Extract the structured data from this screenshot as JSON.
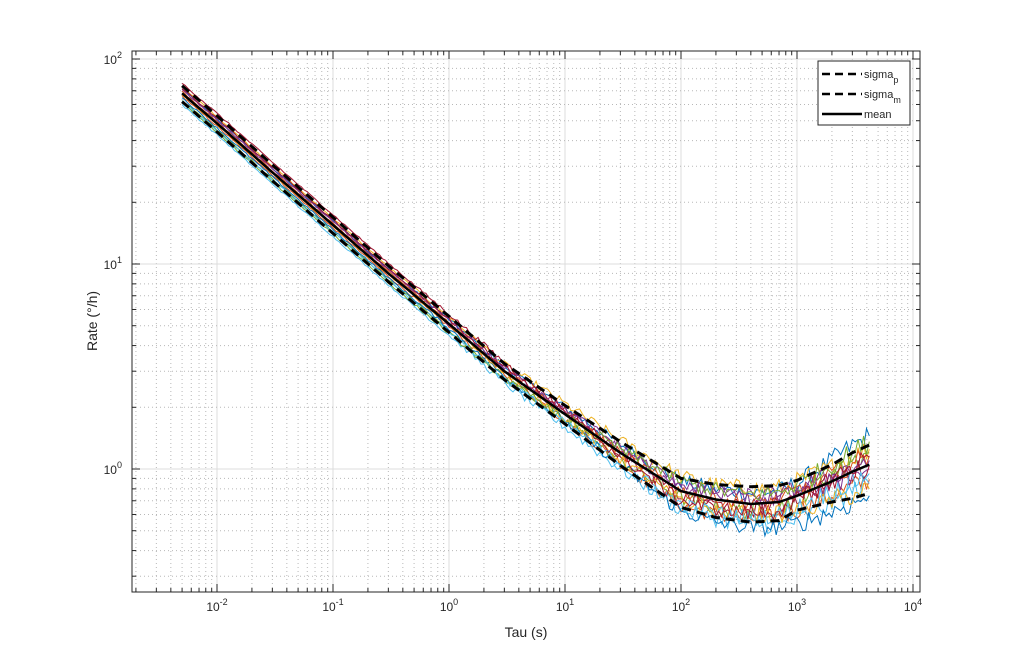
{
  "chart_data": {
    "type": "line",
    "title": "",
    "xlabel": "Tau (s)",
    "ylabel": "Rate (°/h)",
    "xscale": "log",
    "yscale": "log",
    "xlim": [
      0.0018,
      11500
    ],
    "ylim": [
      0.25,
      110
    ],
    "grid": true,
    "minor_grid": true,
    "legend_placement": "top-right",
    "x_ticks": [
      {
        "base": "10",
        "exp": "-2",
        "value": 0.01
      },
      {
        "base": "10",
        "exp": "-1",
        "value": 0.1
      },
      {
        "base": "10",
        "exp": "0",
        "value": 1
      },
      {
        "base": "10",
        "exp": "1",
        "value": 10
      },
      {
        "base": "10",
        "exp": "2",
        "value": 100
      },
      {
        "base": "10",
        "exp": "3",
        "value": 1000
      },
      {
        "base": "10",
        "exp": "4",
        "value": 10000
      }
    ],
    "y_ticks": [
      {
        "base": "10",
        "exp": "0",
        "value": 1
      },
      {
        "base": "10",
        "exp": "1",
        "value": 10
      },
      {
        "base": "10",
        "exp": "2",
        "value": 100
      }
    ],
    "x": [
      0.005,
      0.01,
      0.03,
      0.1,
      0.3,
      1,
      3,
      10,
      30,
      100,
      200,
      400,
      700,
      1000,
      2000,
      3000,
      4200
    ],
    "legend": [
      {
        "label": "sigma",
        "sub": "p",
        "style": "dashed"
      },
      {
        "label": "sigma",
        "sub": "m",
        "style": "dashed"
      },
      {
        "label": "mean",
        "sub": "",
        "style": "solid"
      }
    ],
    "summary_series": {
      "sigma_p": [
        74,
        52.9,
        30.5,
        16.9,
        9.8,
        5.56,
        3.27,
        2.04,
        1.36,
        0.9,
        0.84,
        0.82,
        0.83,
        0.88,
        1.05,
        1.2,
        1.31
      ],
      "sigma_m": [
        62,
        44.1,
        25.5,
        14.1,
        8.2,
        4.64,
        2.73,
        1.66,
        1.04,
        0.65,
        0.58,
        0.55,
        0.56,
        0.63,
        0.69,
        0.72,
        0.76
      ],
      "mean": [
        68,
        48.5,
        28,
        15.5,
        9.0,
        5.1,
        3.0,
        1.85,
        1.2,
        0.78,
        0.71,
        0.675,
        0.69,
        0.74,
        0.87,
        0.97,
        1.05
      ]
    },
    "runs": [
      {
        "color": "#0072BD",
        "values": [
          71.4,
          50.9,
          29.4,
          16.3,
          9.45,
          5.36,
          3.15,
          1.99,
          1.32,
          0.87,
          0.8,
          0.76,
          0.78,
          0.85,
          1.1,
          1.3,
          1.45
        ]
      },
      {
        "color": "#D95319",
        "values": [
          66,
          47,
          27.2,
          15.0,
          8.7,
          4.95,
          2.9,
          1.72,
          1.07,
          0.66,
          0.6,
          0.57,
          0.58,
          0.63,
          0.74,
          0.82,
          0.89
        ]
      },
      {
        "color": "#EDB120",
        "values": [
          73.4,
          52.4,
          30.2,
          16.7,
          9.7,
          5.5,
          3.25,
          2.08,
          1.38,
          0.92,
          0.84,
          0.8,
          0.81,
          0.87,
          1.02,
          1.15,
          1.25
        ]
      },
      {
        "color": "#7E2F8E",
        "values": [
          68,
          48.5,
          28,
          15.5,
          9.0,
          5.1,
          3.0,
          1.9,
          1.24,
          0.82,
          0.75,
          0.71,
          0.72,
          0.76,
          0.84,
          0.92,
          1.0
        ]
      },
      {
        "color": "#77AC30",
        "values": [
          63.2,
          45.1,
          26,
          14.4,
          8.4,
          4.75,
          2.8,
          1.72,
          1.1,
          0.72,
          0.65,
          0.62,
          0.65,
          0.72,
          0.95,
          1.1,
          1.2
        ]
      },
      {
        "color": "#4DBEEE",
        "values": [
          59.8,
          42.7,
          24.6,
          13.6,
          7.9,
          4.5,
          2.62,
          1.6,
          1.0,
          0.63,
          0.57,
          0.54,
          0.53,
          0.56,
          0.68,
          0.78,
          0.85
        ]
      },
      {
        "color": "#A2142F",
        "values": [
          76.2,
          54.3,
          31.4,
          17.4,
          10.1,
          5.7,
          3.3,
          1.95,
          1.2,
          0.74,
          0.67,
          0.64,
          0.66,
          0.72,
          0.86,
          0.96,
          1.04
        ]
      },
      {
        "color": "#0072BD",
        "values": [
          64.6,
          46.1,
          26.6,
          14.7,
          8.55,
          4.85,
          2.83,
          1.7,
          1.05,
          0.62,
          0.55,
          0.52,
          0.52,
          0.54,
          0.62,
          0.68,
          0.74
        ]
      },
      {
        "color": "#D95319",
        "values": [
          69.4,
          49.5,
          28.6,
          15.8,
          9.2,
          5.2,
          3.05,
          1.87,
          1.2,
          0.78,
          0.71,
          0.68,
          0.71,
          0.78,
          0.94,
          1.06,
          1.16
        ]
      },
      {
        "color": "#EDB120",
        "values": [
          67.3,
          48,
          27.7,
          15.3,
          8.9,
          5.05,
          2.96,
          1.78,
          1.12,
          0.69,
          0.63,
          0.6,
          0.6,
          0.63,
          0.7,
          0.75,
          0.8
        ]
      },
      {
        "color": "#7E2F8E",
        "values": [
          70.7,
          50.4,
          29.1,
          16.1,
          9.35,
          5.3,
          3.12,
          1.95,
          1.28,
          0.86,
          0.78,
          0.74,
          0.75,
          0.8,
          0.93,
          1.02,
          1.1
        ]
      },
      {
        "color": "#77AC30",
        "values": [
          61.2,
          43.7,
          25.2,
          14,
          8.1,
          4.6,
          2.75,
          1.8,
          1.25,
          0.87,
          0.79,
          0.75,
          0.77,
          0.84,
          1.05,
          1.2,
          1.36
        ]
      },
      {
        "color": "#4DBEEE",
        "values": [
          62.6,
          44.6,
          25.8,
          14.3,
          8.3,
          4.7,
          2.76,
          1.67,
          1.06,
          0.67,
          0.61,
          0.58,
          0.6,
          0.65,
          0.78,
          0.87,
          0.95
        ]
      },
      {
        "color": "#A2142F",
        "values": [
          72.1,
          51.4,
          29.7,
          16.4,
          9.5,
          5.4,
          3.15,
          1.88,
          1.15,
          0.7,
          0.64,
          0.61,
          0.63,
          0.7,
          0.9,
          1.03,
          1.14
        ]
      }
    ]
  }
}
